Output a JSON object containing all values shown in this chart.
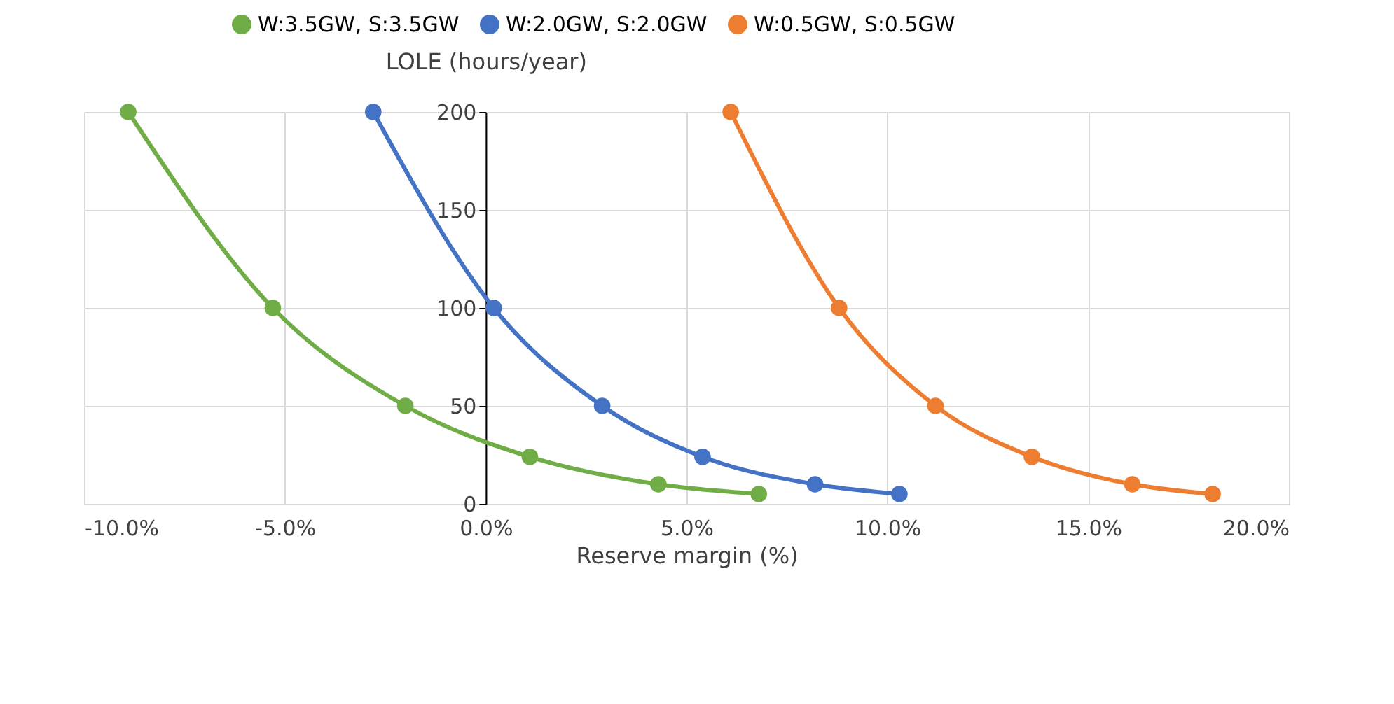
{
  "chart_data": {
    "type": "line",
    "ylabel": "LOLE (hours/year)",
    "xlabel": "Reserve margin (%)",
    "xlim": [
      -10,
      20
    ],
    "xticks": [
      {
        "value": -10,
        "label": "-10.0%"
      },
      {
        "value": -5,
        "label": "-5.0%"
      },
      {
        "value": 0,
        "label": "0.0%"
      },
      {
        "value": 5,
        "label": "5.0%"
      },
      {
        "value": 10,
        "label": "10.0%"
      },
      {
        "value": 15,
        "label": "15.0%"
      },
      {
        "value": 20,
        "label": "20.0%"
      }
    ],
    "ylim": [
      0,
      200
    ],
    "yticks": [
      0,
      50,
      100,
      150,
      200
    ],
    "grid": true,
    "legend": "top",
    "marker": "circle",
    "line_style": "solid",
    "series": [
      {
        "name": "W:3.5GW, S:3.5GW",
        "color": "#70ad47",
        "x": [
          -8.9,
          -5.3,
          -2.0,
          1.1,
          4.3,
          6.8
        ],
        "values": [
          200,
          100,
          50,
          24,
          10,
          5
        ]
      },
      {
        "name": "W:2.0GW, S:2.0GW",
        "color": "#4472c4",
        "x": [
          -2.8,
          0.2,
          2.9,
          5.4,
          8.2,
          10.3
        ],
        "values": [
          200,
          100,
          50,
          24,
          10,
          5
        ]
      },
      {
        "name": "W:0.5GW, S:0.5GW",
        "color": "#ed7d31",
        "x": [
          6.1,
          8.8,
          11.2,
          13.6,
          16.1,
          18.1
        ],
        "values": [
          200,
          100,
          50,
          24,
          10,
          5
        ]
      }
    ]
  }
}
